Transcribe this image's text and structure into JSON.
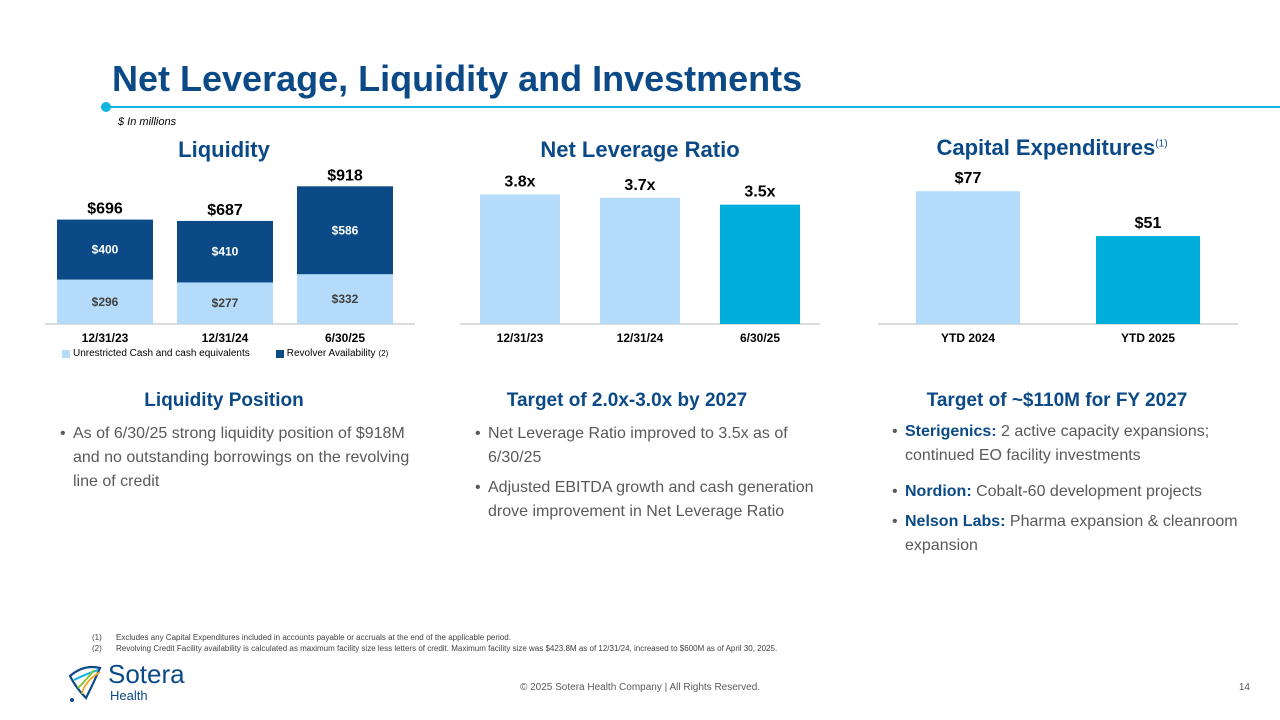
{
  "slide": {
    "title": "Net Leverage, Liquidity and Investments",
    "units": "$ In millions",
    "page_number": "14",
    "copyright": "© 2025 Sotera Health Company |  All Rights Reserved."
  },
  "colors": {
    "dark_blue": "#0b4a86",
    "light_blue": "#b4dcfa",
    "teal": "#00aedb",
    "accent": "#13b4e0"
  },
  "chart_data": [
    {
      "type": "bar",
      "stacked": true,
      "title": "Liquidity",
      "categories": [
        "12/31/23",
        "12/31/24",
        "6/30/25"
      ],
      "series": [
        {
          "name": "Unrestricted Cash and cash equivalents",
          "values": [
            296,
            277,
            332
          ],
          "labels": [
            "$296",
            "$277",
            "$332"
          ]
        },
        {
          "name": "Revolver Availability",
          "note": "(2)",
          "values": [
            400,
            410,
            586
          ],
          "labels": [
            "$400",
            "$410",
            "$586"
          ]
        }
      ],
      "totals": [
        696,
        687,
        918
      ],
      "total_labels": [
        "$696",
        "$687",
        "$918"
      ],
      "ylim": [
        0,
        1000
      ]
    },
    {
      "type": "bar",
      "title": "Net Leverage Ratio",
      "categories": [
        "12/31/23",
        "12/31/24",
        "6/30/25"
      ],
      "values": [
        3.8,
        3.7,
        3.5
      ],
      "labels": [
        "3.8x",
        "3.7x",
        "3.5x"
      ],
      "ylim": [
        0,
        4.4
      ]
    },
    {
      "type": "bar",
      "title": "Capital Expenditures",
      "title_note": "(1)",
      "categories": [
        "YTD 2024",
        "YTD 2025"
      ],
      "values": [
        77,
        51
      ],
      "labels": [
        "$77",
        "$51"
      ],
      "ylim": [
        0,
        87
      ]
    }
  ],
  "sections": {
    "liquidity": {
      "heading": "Liquidity Position",
      "bullets": [
        "As of 6/30/25 strong liquidity position of $918M and no outstanding borrowings on the revolving line of credit"
      ]
    },
    "leverage": {
      "heading": "Target of 2.0x-3.0x by 2027",
      "bullets": [
        "Net Leverage Ratio improved to 3.5x as of 6/30/25",
        "Adjusted EBITDA growth and cash generation drove improvement in Net Leverage Ratio"
      ]
    },
    "capex": {
      "heading": "Target of ~$110M for FY 2027",
      "bullets": [
        {
          "bold": "Sterigenics:",
          "text": " 2 active capacity expansions; continued EO facility investments"
        },
        {
          "bold": "Nordion:",
          "text": " Cobalt-60 development projects"
        },
        {
          "bold": "Nelson Labs:",
          "text": " Pharma expansion & cleanroom expansion"
        }
      ]
    }
  },
  "footnotes": [
    {
      "num": "(1)",
      "text": "Excludes any Capital Expenditures included in accounts payable or accruals at the end of the applicable period."
    },
    {
      "num": "(2)",
      "text": "Revolving Credit Facility availability is calculated as maximum facility size less letters of credit. Maximum facility size was $423.8M as of 12/31/24, increased to $600M as of April 30, 2025."
    }
  ],
  "logo": {
    "name": "Sotera",
    "sub": "Health"
  }
}
